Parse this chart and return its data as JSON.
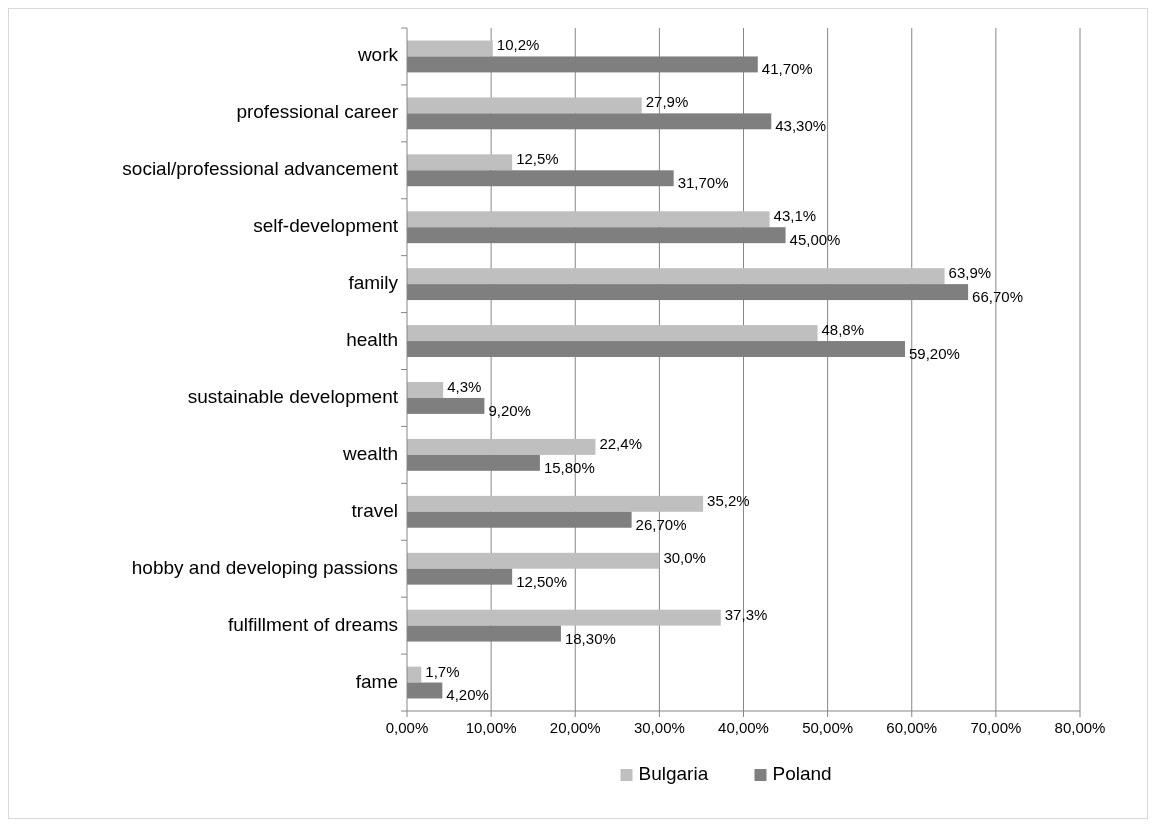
{
  "chart_data": {
    "type": "bar",
    "orientation": "horizontal",
    "categories": [
      "work",
      "professional career",
      "social/professional advancement",
      "self-development",
      "family",
      "health",
      "sustainable development",
      "wealth",
      "travel",
      "hobby and developing passions",
      "fulfillment of dreams",
      "fame"
    ],
    "series": [
      {
        "name": "Bulgaria",
        "color": "#bfbfbf",
        "values": [
          10.2,
          27.9,
          12.5,
          43.1,
          63.9,
          48.8,
          4.3,
          22.4,
          35.2,
          30.0,
          37.3,
          1.7
        ],
        "value_labels": [
          "10,2%",
          "27,9%",
          "12,5%",
          "43,1%",
          "63,9%",
          "48,8%",
          "4,3%",
          "22,4%",
          "35,2%",
          "30,0%",
          "37,3%",
          "1,7%"
        ]
      },
      {
        "name": "Poland",
        "color": "#7f7f7f",
        "values": [
          41.7,
          43.3,
          31.7,
          45.0,
          66.7,
          59.2,
          9.2,
          15.8,
          26.7,
          12.5,
          18.3,
          4.2
        ],
        "value_labels": [
          "41,70%",
          "43,30%",
          "31,70%",
          "45,00%",
          "66,70%",
          "59,20%",
          "9,20%",
          "15,80%",
          "26,70%",
          "12,50%",
          "18,30%",
          "4,20%"
        ]
      }
    ],
    "xlim": [
      0,
      80
    ],
    "xticks": [
      {
        "value": 0,
        "label": "0,00%"
      },
      {
        "value": 10,
        "label": "10,00%"
      },
      {
        "value": 20,
        "label": "20,00%"
      },
      {
        "value": 30,
        "label": "30,00%"
      },
      {
        "value": 40,
        "label": "40,00%"
      },
      {
        "value": 50,
        "label": "50,00%"
      },
      {
        "value": 60,
        "label": "60,00%"
      },
      {
        "value": 70,
        "label": "70,00%"
      },
      {
        "value": 80,
        "label": "80,00%"
      }
    ],
    "grid": "x",
    "legend": "bottom"
  }
}
